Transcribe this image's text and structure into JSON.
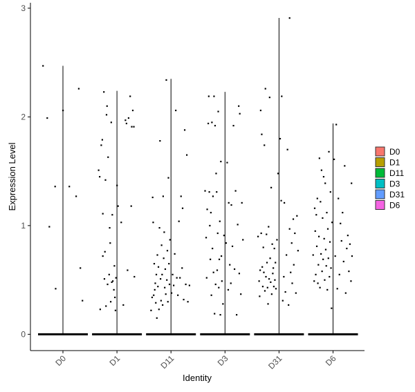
{
  "chart_data": {
    "type": "violin",
    "xlabel": "Identity",
    "ylabel": "Expression Level",
    "ylim": [
      -0.15,
      3.05
    ],
    "yticks": [
      0,
      1,
      2,
      3
    ],
    "categories": [
      "D0",
      "D1",
      "D11",
      "D3",
      "D31",
      "D6"
    ],
    "legend": {
      "placement": "right",
      "entries": [
        "D0",
        "D1",
        "D11",
        "D3",
        "D31",
        "D6"
      ]
    },
    "colors": [
      "#F8766D",
      "#B79F00",
      "#00BA38",
      "#00BFC4",
      "#619CFF",
      "#F564E3"
    ],
    "series": [
      {
        "name": "D0",
        "max": 2.47,
        "points": [
          [
            -0.38,
            2.47
          ],
          [
            -0.3,
            1.99
          ],
          [
            -0.26,
            0.99
          ],
          [
            -0.15,
            1.36
          ],
          [
            -0.14,
            0.42
          ],
          [
            0.0,
            2.06
          ],
          [
            0.12,
            1.36
          ],
          [
            0.25,
            1.27
          ],
          [
            0.3,
            2.26
          ],
          [
            0.33,
            0.61
          ],
          [
            0.37,
            0.31
          ]
        ]
      },
      {
        "name": "D1",
        "max": 2.24,
        "points": [
          [
            -0.35,
            1.51
          ],
          [
            -0.33,
            1.45
          ],
          [
            -0.32,
            0.23
          ],
          [
            -0.3,
            1.74
          ],
          [
            -0.28,
            1.79
          ],
          [
            -0.27,
            1.11
          ],
          [
            -0.27,
            0.72
          ],
          [
            -0.25,
            2.23
          ],
          [
            -0.24,
            0.51
          ],
          [
            -0.23,
            0.76
          ],
          [
            -0.22,
            1.42
          ],
          [
            -0.21,
            0.26
          ],
          [
            -0.2,
            2.02
          ],
          [
            -0.19,
            2.1
          ],
          [
            -0.18,
            0.46
          ],
          [
            -0.17,
            1.63
          ],
          [
            -0.15,
            0.55
          ],
          [
            -0.14,
            0.98
          ],
          [
            -0.13,
            0.84
          ],
          [
            -0.12,
            0.3
          ],
          [
            -0.11,
            1.95
          ],
          [
            -0.1,
            0.48
          ],
          [
            -0.09,
            1.1
          ],
          [
            -0.08,
            0.49
          ],
          [
            -0.06,
            0.41
          ],
          [
            -0.05,
            0.63
          ],
          [
            -0.04,
            0.34
          ],
          [
            -0.03,
            0.22
          ],
          [
            -0.02,
            0.52
          ],
          [
            0.0,
            1.37
          ],
          [
            0.02,
            1.18
          ],
          [
            0.08,
            1.03
          ],
          [
            0.12,
            0.27
          ],
          [
            0.16,
            1.97
          ],
          [
            0.18,
            1.94
          ],
          [
            0.2,
            0.59
          ],
          [
            0.22,
            1.99
          ],
          [
            0.25,
            2.19
          ],
          [
            0.27,
            1.18
          ],
          [
            0.28,
            1.91
          ],
          [
            0.3,
            2.06
          ],
          [
            0.32,
            1.91
          ],
          [
            0.33,
            0.53
          ]
        ]
      },
      {
        "name": "D11",
        "max": 2.35,
        "points": [
          [
            -0.38,
            0.22
          ],
          [
            -0.36,
            0.34
          ],
          [
            -0.35,
            1.26
          ],
          [
            -0.34,
            1.03
          ],
          [
            -0.33,
            0.36
          ],
          [
            -0.32,
            0.65
          ],
          [
            -0.31,
            0.41
          ],
          [
            -0.3,
            0.47
          ],
          [
            -0.29,
            0.29
          ],
          [
            -0.28,
            0.55
          ],
          [
            -0.27,
            0.15
          ],
          [
            -0.26,
            0.73
          ],
          [
            -0.25,
            0.44
          ],
          [
            -0.24,
            0.62
          ],
          [
            -0.23,
            0.23
          ],
          [
            -0.22,
            0.98
          ],
          [
            -0.21,
            1.78
          ],
          [
            -0.2,
            0.51
          ],
          [
            -0.19,
            0.31
          ],
          [
            -0.18,
            0.82
          ],
          [
            -0.17,
            0.55
          ],
          [
            -0.16,
            0.27
          ],
          [
            -0.15,
            1.27
          ],
          [
            -0.14,
            0.7
          ],
          [
            -0.13,
            0.94
          ],
          [
            -0.12,
            0.43
          ],
          [
            -0.11,
            0.6
          ],
          [
            -0.1,
            0.37
          ],
          [
            -0.09,
            2.34
          ],
          [
            -0.08,
            0.5
          ],
          [
            -0.07,
            0.77
          ],
          [
            -0.06,
            0.3
          ],
          [
            -0.05,
            1.44
          ],
          [
            -0.04,
            0.65
          ],
          [
            -0.03,
            0.46
          ],
          [
            -0.02,
            0.87
          ],
          [
            0.01,
            0.38
          ],
          [
            0.03,
            0.55
          ],
          [
            0.05,
            0.45
          ],
          [
            0.07,
            0.74
          ],
          [
            0.09,
            2.06
          ],
          [
            0.11,
            0.52
          ],
          [
            0.13,
            0.36
          ],
          [
            0.15,
            1.04
          ],
          [
            0.17,
            0.52
          ],
          [
            0.19,
            1.27
          ],
          [
            0.21,
            0.61
          ],
          [
            0.22,
            1.16
          ],
          [
            0.24,
            0.32
          ],
          [
            0.26,
            1.88
          ],
          [
            0.28,
            0.46
          ],
          [
            0.3,
            1.65
          ],
          [
            0.32,
            0.3
          ],
          [
            0.35,
            0.45
          ]
        ]
      },
      {
        "name": "D3",
        "max": 2.23,
        "points": [
          [
            -0.38,
            1.32
          ],
          [
            -0.36,
            0.89
          ],
          [
            -0.35,
            0.52
          ],
          [
            -0.34,
            1.15
          ],
          [
            -0.32,
            1.94
          ],
          [
            -0.31,
            2.19
          ],
          [
            -0.3,
            1.31
          ],
          [
            -0.29,
            1.0
          ],
          [
            -0.28,
            0.69
          ],
          [
            -0.27,
            1.12
          ],
          [
            -0.26,
            0.36
          ],
          [
            -0.25,
            1.95
          ],
          [
            -0.24,
            0.79
          ],
          [
            -0.23,
            1.27
          ],
          [
            -0.22,
            0.57
          ],
          [
            -0.21,
            2.19
          ],
          [
            -0.2,
            0.19
          ],
          [
            -0.19,
            1.92
          ],
          [
            -0.18,
            0.46
          ],
          [
            -0.17,
            1.48
          ],
          [
            -0.16,
            1.31
          ],
          [
            -0.15,
            0.59
          ],
          [
            -0.14,
            0.93
          ],
          [
            -0.13,
            2.05
          ],
          [
            -0.12,
            0.43
          ],
          [
            -0.11,
            0.69
          ],
          [
            -0.1,
            1.04
          ],
          [
            -0.09,
            0.18
          ],
          [
            -0.08,
            1.59
          ],
          [
            -0.07,
            0.72
          ],
          [
            -0.06,
            0.49
          ],
          [
            -0.04,
            0.28
          ],
          [
            -0.02,
            0.91
          ],
          [
            0.02,
            0.84
          ],
          [
            0.04,
            1.58
          ],
          [
            0.06,
            0.41
          ],
          [
            0.07,
            1.21
          ],
          [
            0.09,
            0.64
          ],
          [
            0.11,
            0.47
          ],
          [
            0.12,
            1.19
          ],
          [
            0.14,
            0.81
          ],
          [
            0.16,
            1.92
          ],
          [
            0.18,
            0.6
          ],
          [
            0.2,
            1.32
          ],
          [
            0.22,
            0.18
          ],
          [
            0.24,
            1.01
          ],
          [
            0.26,
            2.1
          ],
          [
            0.27,
            0.56
          ],
          [
            0.28,
            2.03
          ],
          [
            0.3,
            0.37
          ],
          [
            0.32,
            1.21
          ],
          [
            0.34,
            0.87
          ]
        ]
      },
      {
        "name": "D31",
        "max": 2.91,
        "points": [
          [
            -0.4,
            0.9
          ],
          [
            -0.38,
            0.49
          ],
          [
            -0.37,
            0.35
          ],
          [
            -0.36,
            0.59
          ],
          [
            -0.35,
            2.06
          ],
          [
            -0.34,
            0.93
          ],
          [
            -0.33,
            1.84
          ],
          [
            -0.32,
            0.62
          ],
          [
            -0.31,
            0.44
          ],
          [
            -0.3,
            0.8
          ],
          [
            -0.29,
            0.57
          ],
          [
            -0.28,
            1.74
          ],
          [
            -0.27,
            0.4
          ],
          [
            -0.26,
            2.26
          ],
          [
            -0.25,
            0.53
          ],
          [
            -0.24,
            0.92
          ],
          [
            -0.23,
            0.66
          ],
          [
            -0.22,
            0.43
          ],
          [
            -0.21,
            0.28
          ],
          [
            -0.2,
            0.99
          ],
          [
            -0.19,
            0.51
          ],
          [
            -0.18,
            2.18
          ],
          [
            -0.17,
            0.7
          ],
          [
            -0.16,
            0.48
          ],
          [
            -0.15,
            1.35
          ],
          [
            -0.14,
            0.37
          ],
          [
            -0.13,
            0.83
          ],
          [
            -0.12,
            0.56
          ],
          [
            -0.11,
            0.61
          ],
          [
            -0.1,
            0.44
          ],
          [
            -0.09,
            0.79
          ],
          [
            -0.08,
            0.5
          ],
          [
            -0.07,
            0.66
          ],
          [
            -0.06,
            0.42
          ],
          [
            -0.04,
            0.87
          ],
          [
            -0.02,
            1.48
          ],
          [
            0.02,
            1.8
          ],
          [
            0.04,
            1.23
          ],
          [
            0.05,
            2.19
          ],
          [
            0.07,
            0.31
          ],
          [
            0.09,
            0.53
          ],
          [
            0.1,
            1.21
          ],
          [
            0.12,
            0.39
          ],
          [
            0.14,
            0.73
          ],
          [
            0.16,
            1.7
          ],
          [
            0.18,
            0.27
          ],
          [
            0.2,
            0.97
          ],
          [
            0.22,
            0.57
          ],
          [
            0.24,
            0.84
          ],
          [
            0.25,
            0.47
          ],
          [
            0.27,
            1.06
          ],
          [
            0.28,
            0.64
          ],
          [
            0.3,
            0.93
          ],
          [
            0.32,
            0.38
          ],
          [
            0.34,
            1.09
          ],
          [
            0.36,
            0.77
          ],
          [
            0.2,
            2.91
          ]
        ]
      },
      {
        "name": "D6",
        "max": 1.94,
        "points": [
          [
            -0.38,
            0.73
          ],
          [
            -0.36,
            0.49
          ],
          [
            -0.35,
            1.16
          ],
          [
            -0.34,
            0.95
          ],
          [
            -0.33,
            0.55
          ],
          [
            -0.32,
            1.1
          ],
          [
            -0.31,
            0.81
          ],
          [
            -0.3,
            1.25
          ],
          [
            -0.29,
            0.47
          ],
          [
            -0.28,
            0.64
          ],
          [
            -0.27,
            0.9
          ],
          [
            -0.26,
            1.62
          ],
          [
            -0.25,
            0.43
          ],
          [
            -0.24,
            1.22
          ],
          [
            -0.23,
            0.74
          ],
          [
            -0.22,
            1.51
          ],
          [
            -0.21,
            0.58
          ],
          [
            -0.2,
            1.07
          ],
          [
            -0.19,
            0.69
          ],
          [
            -0.18,
            1.45
          ],
          [
            -0.17,
            0.88
          ],
          [
            -0.16,
            0.5
          ],
          [
            -0.15,
            1.39
          ],
          [
            -0.14,
            0.78
          ],
          [
            -0.13,
            0.63
          ],
          [
            -0.12,
            1.12
          ],
          [
            -0.11,
            0.41
          ],
          [
            -0.1,
            0.97
          ],
          [
            -0.09,
            0.7
          ],
          [
            -0.08,
            1.68
          ],
          [
            -0.07,
            0.53
          ],
          [
            -0.06,
            0.85
          ],
          [
            -0.05,
            1.31
          ],
          [
            -0.04,
            0.61
          ],
          [
            -0.03,
            0.24
          ],
          [
            -0.02,
            1.03
          ],
          [
            0.02,
            1.61
          ],
          [
            0.04,
            0.72
          ],
          [
            0.06,
            1.93
          ],
          [
            0.08,
            0.42
          ],
          [
            0.1,
            1.25
          ],
          [
            0.12,
            0.55
          ],
          [
            0.14,
            1.02
          ],
          [
            0.16,
            0.86
          ],
          [
            0.18,
            1.12
          ],
          [
            0.2,
            0.67
          ],
          [
            0.22,
            1.55
          ],
          [
            0.24,
            0.38
          ],
          [
            0.26,
            0.79
          ],
          [
            0.28,
            0.91
          ],
          [
            0.3,
            0.58
          ],
          [
            0.32,
            0.83
          ],
          [
            0.34,
            0.49
          ],
          [
            0.35,
            1.39
          ],
          [
            0.36,
            0.72
          ]
        ]
      }
    ]
  }
}
